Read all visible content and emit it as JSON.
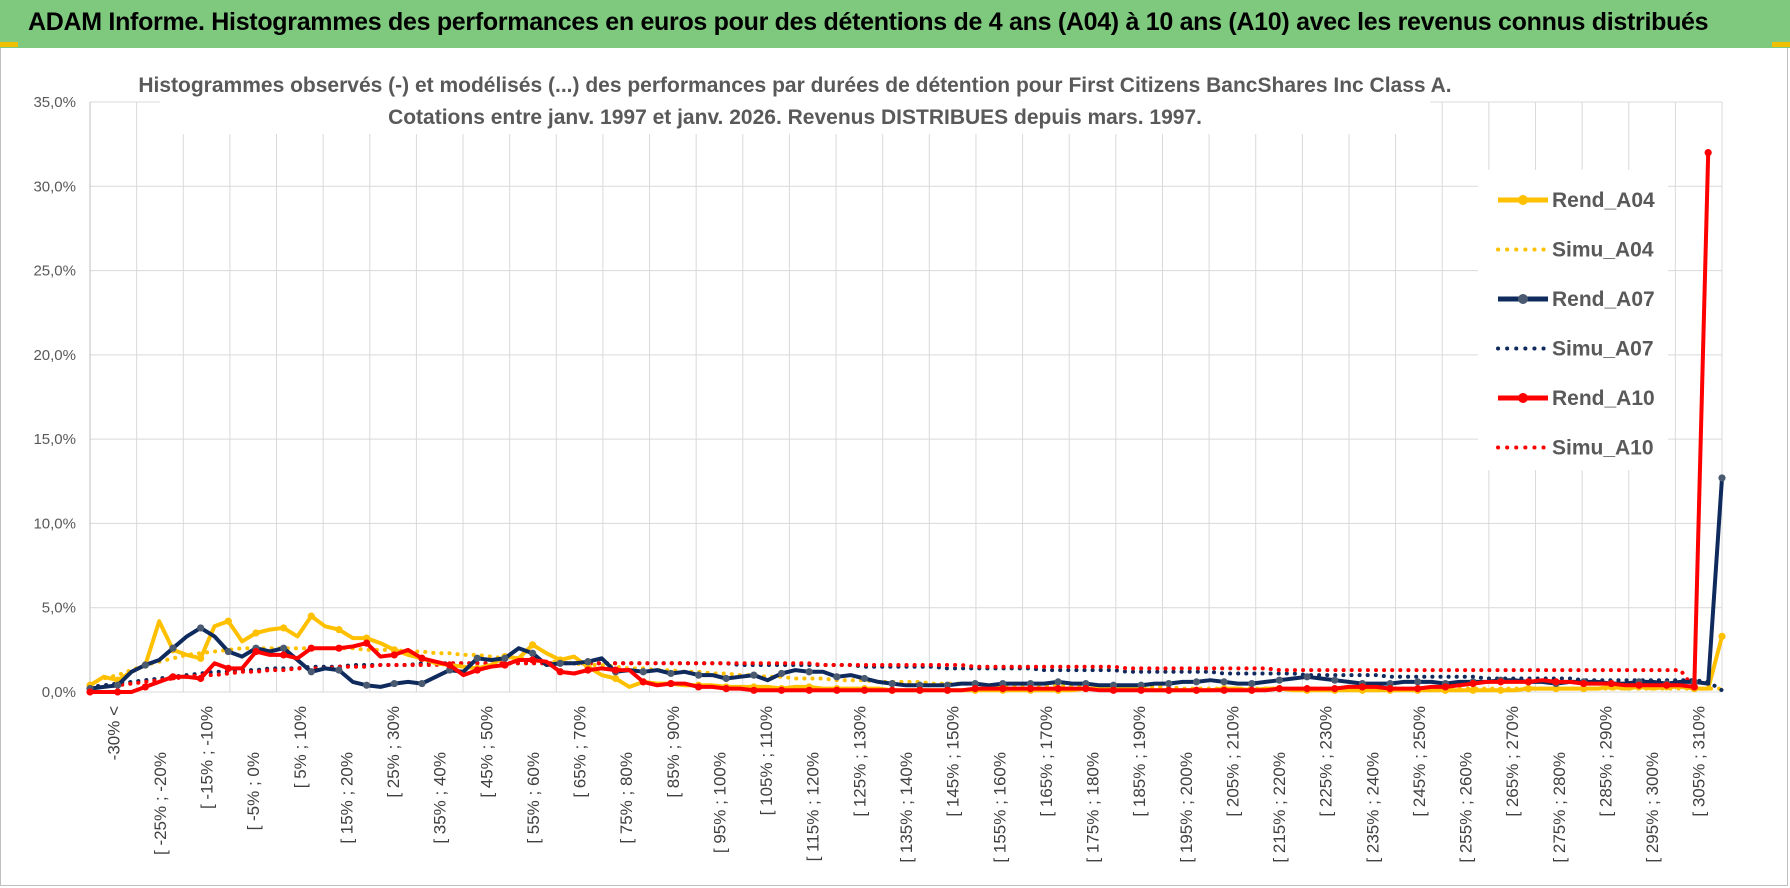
{
  "header": {
    "title": "ADAM Informe. Histogrammes des performances en euros pour des détentions de 4 ans (A04) à 10 ans (A10) avec les revenus connus distribués"
  },
  "colors": {
    "header_bg": "#7fc97f",
    "a04": "#ffc000",
    "a07": "#0f2a5c",
    "a07_marker": "#4a5a70",
    "a10": "#ff0000",
    "grid": "#d9d9d9"
  },
  "chart_data": {
    "type": "line",
    "title": "Histogrammes observés (-) et modélisés (...) des performances par durées de détention pour First Citizens BancShares Inc Class A.",
    "subtitle": "Cotations entre janv. 1997 et janv. 2026. Revenus DISTRIBUES depuis mars. 1997.",
    "xlabel": "",
    "ylabel": "",
    "ylim": [
      0,
      35
    ],
    "yticks": [
      "0,0%",
      "5,0%",
      "10,0%",
      "15,0%",
      "20,0%",
      "25,0%",
      "30,0%",
      "35,0%"
    ],
    "grid": true,
    "legend_position": "right",
    "category_labels": [
      "-30% <",
      "[ -25% ; -20%",
      "[ -15% ; -10%",
      "[ -5% ; 0%",
      "[ 5% ; 10%",
      "[ 15% ; 20%",
      "[ 25% ; 30%",
      "[ 35% ; 40%",
      "[ 45% ; 50%",
      "[ 55% ; 60%",
      "[ 65% ; 70%",
      "[ 75% ; 80%",
      "[ 85% ; 90%",
      "[ 95% ; 100%",
      "[ 105% ; 110%",
      "[ 115% ; 120%",
      "[ 125% ; 130%",
      "[ 135% ; 140%",
      "[ 145% ; 150%",
      "[ 155% ; 160%",
      "[ 165% ; 170%",
      "[ 175% ; 180%",
      "[ 185% ; 190%",
      "[ 195% ; 200%",
      "[ 205% ; 210%",
      "[ 215% ; 220%",
      "[ 225% ; 230%",
      "[ 235% ; 240%",
      "[ 245% ; 250%",
      "[ 255% ; 260%",
      "[ 265% ; 270%",
      "[ 275% ; 280%",
      "[ 285% ; 290%",
      "[ 295% ; 300%",
      "[ 305% ; 310%"
    ],
    "series": [
      {
        "name": "Rend_A04",
        "style": "solid",
        "color": "#ffc000",
        "values": [
          0.4,
          0.9,
          0.7,
          1.2,
          1.6,
          4.2,
          2.5,
          2.2,
          2.0,
          3.9,
          4.2,
          3.0,
          3.5,
          3.7,
          3.8,
          3.3,
          4.5,
          3.9,
          3.7,
          3.2,
          3.2,
          2.9,
          2.5,
          2.2,
          2.0,
          1.7,
          1.6,
          1.5,
          1.4,
          1.6,
          2.1,
          2.0,
          2.8,
          2.3,
          1.9,
          2.1,
          1.5,
          1.0,
          0.8,
          0.3,
          0.6,
          0.5,
          0.5,
          0.4,
          0.4,
          0.4,
          0.3,
          0.3,
          0.3,
          0.3,
          0.2,
          0.3,
          0.3,
          0.2,
          0.2,
          0.2,
          0.2,
          0.2,
          0.1,
          0.1,
          0.1,
          0.1,
          0.1,
          0.1,
          0.1,
          0.1,
          0.1,
          0.1,
          0.1,
          0.1,
          0.1,
          0.1,
          0.2,
          0.2,
          0.2,
          0.2,
          0.2,
          0.1,
          0.1,
          0.1,
          0.1,
          0.1,
          0.2,
          0.2,
          0.1,
          0.2,
          0.2,
          0.1,
          0.1,
          0.1,
          0.1,
          0.1,
          0.1,
          0.1,
          0.1,
          0.1,
          0.1,
          0.1,
          0.1,
          0.1,
          0.1,
          0.1,
          0.1,
          0.1,
          0.2,
          0.2,
          0.2,
          0.2,
          0.2,
          0.2,
          0.3,
          0.2,
          0.3,
          0.2,
          0.3,
          0.3,
          0.2,
          0.2,
          3.3
        ]
      },
      {
        "name": "Simu_A04",
        "style": "dotted",
        "color": "#ffc000",
        "values": [
          0.5,
          0.8,
          1.0,
          1.3,
          1.6,
          1.8,
          2.0,
          2.2,
          2.3,
          2.4,
          2.5,
          2.6,
          2.6,
          2.6,
          2.6,
          2.6,
          2.6,
          2.6,
          2.6,
          2.6,
          2.5,
          2.5,
          2.5,
          2.4,
          2.4,
          2.3,
          2.3,
          2.2,
          2.2,
          2.1,
          2.0,
          2.0,
          1.9,
          1.8,
          1.8,
          1.7,
          1.6,
          1.6,
          1.5,
          1.4,
          1.4,
          1.3,
          1.3,
          1.2,
          1.2,
          1.1,
          1.1,
          1.0,
          1.0,
          0.9,
          0.9,
          0.8,
          0.8,
          0.8,
          0.7,
          0.7,
          0.7,
          0.6,
          0.6,
          0.6,
          0.6,
          0.5,
          0.5,
          0.5,
          0.5,
          0.4,
          0.4,
          0.4,
          0.4,
          0.4,
          0.4,
          0.3,
          0.3,
          0.3,
          0.3,
          0.3,
          0.3,
          0.3,
          0.3,
          0.2,
          0.2,
          0.2,
          0.2,
          0.2,
          0.2,
          0.2,
          0.2,
          0.2,
          0.2,
          0.2,
          0.2,
          0.2,
          0.2,
          0.2,
          0.2,
          0.2,
          0.2,
          0.2,
          0.2,
          0.2,
          0.2,
          0.2,
          0.2,
          0.2,
          0.2,
          0.2,
          0.2,
          0.2,
          0.2,
          0.2,
          0.2,
          0.2,
          0.2,
          0.2,
          0.2,
          0.2,
          0.2,
          0.2,
          0.2
        ]
      },
      {
        "name": "Rend_A07",
        "style": "solid",
        "color": "#0f2a5c",
        "values": [
          0.2,
          0.3,
          0.4,
          1.2,
          1.6,
          1.9,
          2.6,
          3.3,
          3.8,
          3.3,
          2.4,
          2.1,
          2.6,
          2.4,
          2.6,
          1.9,
          1.2,
          1.4,
          1.3,
          0.6,
          0.4,
          0.3,
          0.5,
          0.6,
          0.5,
          0.9,
          1.3,
          1.2,
          2.0,
          1.9,
          2.0,
          2.6,
          2.3,
          1.6,
          1.7,
          1.7,
          1.8,
          2.0,
          1.2,
          1.3,
          1.2,
          1.3,
          1.1,
          1.2,
          1.0,
          1.0,
          0.8,
          0.9,
          1.0,
          0.7,
          1.1,
          1.3,
          1.2,
          1.2,
          0.9,
          1.0,
          0.8,
          0.6,
          0.5,
          0.4,
          0.4,
          0.4,
          0.4,
          0.5,
          0.5,
          0.4,
          0.5,
          0.5,
          0.5,
          0.5,
          0.6,
          0.5,
          0.5,
          0.4,
          0.4,
          0.4,
          0.4,
          0.5,
          0.5,
          0.6,
          0.6,
          0.7,
          0.6,
          0.5,
          0.5,
          0.6,
          0.7,
          0.8,
          0.9,
          0.8,
          0.7,
          0.6,
          0.5,
          0.5,
          0.5,
          0.6,
          0.6,
          0.6,
          0.5,
          0.6,
          0.6,
          0.6,
          0.7,
          0.7,
          0.6,
          0.6,
          0.5,
          0.6,
          0.6,
          0.6,
          0.5,
          0.5,
          0.6,
          0.6,
          0.5,
          0.6,
          0.6,
          0.5,
          12.7
        ]
      },
      {
        "name": "Simu_A07",
        "style": "dotted",
        "color": "#0f2a5c",
        "values": [
          0.3,
          0.4,
          0.5,
          0.6,
          0.7,
          0.8,
          0.9,
          1.0,
          1.1,
          1.2,
          1.2,
          1.3,
          1.3,
          1.4,
          1.4,
          1.4,
          1.5,
          1.5,
          1.5,
          1.6,
          1.6,
          1.6,
          1.6,
          1.6,
          1.7,
          1.7,
          1.7,
          1.7,
          1.7,
          1.7,
          1.7,
          1.7,
          1.7,
          1.7,
          1.7,
          1.7,
          1.7,
          1.7,
          1.7,
          1.7,
          1.7,
          1.7,
          1.7,
          1.7,
          1.7,
          1.7,
          1.7,
          1.6,
          1.6,
          1.6,
          1.6,
          1.6,
          1.6,
          1.6,
          1.6,
          1.6,
          1.5,
          1.5,
          1.5,
          1.5,
          1.5,
          1.5,
          1.4,
          1.4,
          1.4,
          1.4,
          1.4,
          1.4,
          1.4,
          1.3,
          1.3,
          1.3,
          1.3,
          1.3,
          1.3,
          1.2,
          1.2,
          1.2,
          1.2,
          1.2,
          1.2,
          1.2,
          1.1,
          1.1,
          1.1,
          1.1,
          1.1,
          1.1,
          1.0,
          1.0,
          1.0,
          1.0,
          1.0,
          1.0,
          0.9,
          0.9,
          0.9,
          0.9,
          0.9,
          0.9,
          0.9,
          0.8,
          0.8,
          0.8,
          0.8,
          0.8,
          0.8,
          0.8,
          0.7,
          0.7,
          0.7,
          0.7,
          0.7,
          0.7,
          0.7,
          0.7,
          0.7,
          0.6,
          0.1
        ]
      },
      {
        "name": "Rend_A10",
        "style": "solid",
        "color": "#ff0000",
        "values": [
          0.0,
          0.0,
          0.0,
          0.0,
          0.3,
          0.6,
          0.9,
          0.9,
          0.8,
          1.7,
          1.4,
          1.4,
          2.4,
          2.2,
          2.2,
          2.0,
          2.6,
          2.6,
          2.6,
          2.7,
          2.9,
          2.1,
          2.2,
          2.5,
          2.0,
          1.8,
          1.6,
          1.0,
          1.3,
          1.5,
          1.6,
          1.9,
          1.9,
          1.8,
          1.2,
          1.1,
          1.3,
          1.4,
          1.3,
          1.3,
          0.6,
          0.4,
          0.5,
          0.5,
          0.3,
          0.3,
          0.2,
          0.2,
          0.1,
          0.1,
          0.1,
          0.1,
          0.1,
          0.1,
          0.1,
          0.1,
          0.1,
          0.1,
          0.1,
          0.1,
          0.1,
          0.1,
          0.1,
          0.1,
          0.2,
          0.2,
          0.2,
          0.2,
          0.2,
          0.2,
          0.2,
          0.2,
          0.2,
          0.1,
          0.1,
          0.1,
          0.1,
          0.1,
          0.1,
          0.1,
          0.1,
          0.1,
          0.1,
          0.1,
          0.1,
          0.1,
          0.2,
          0.2,
          0.2,
          0.2,
          0.2,
          0.3,
          0.3,
          0.3,
          0.2,
          0.2,
          0.2,
          0.3,
          0.3,
          0.4,
          0.5,
          0.6,
          0.6,
          0.6,
          0.6,
          0.7,
          0.6,
          0.6,
          0.5,
          0.5,
          0.5,
          0.4,
          0.4,
          0.4,
          0.4,
          0.4,
          0.3,
          32.0
        ]
      },
      {
        "name": "Simu_A10",
        "style": "dotted",
        "color": "#ff0000",
        "values": [
          0.2,
          0.3,
          0.4,
          0.5,
          0.6,
          0.7,
          0.8,
          0.9,
          1.0,
          1.0,
          1.1,
          1.2,
          1.2,
          1.3,
          1.3,
          1.4,
          1.4,
          1.4,
          1.5,
          1.5,
          1.5,
          1.6,
          1.6,
          1.6,
          1.6,
          1.6,
          1.7,
          1.7,
          1.7,
          1.7,
          1.7,
          1.7,
          1.7,
          1.7,
          1.7,
          1.7,
          1.7,
          1.7,
          1.7,
          1.7,
          1.7,
          1.7,
          1.7,
          1.7,
          1.7,
          1.7,
          1.7,
          1.7,
          1.7,
          1.7,
          1.7,
          1.7,
          1.7,
          1.6,
          1.6,
          1.6,
          1.6,
          1.6,
          1.6,
          1.6,
          1.6,
          1.6,
          1.6,
          1.6,
          1.5,
          1.5,
          1.5,
          1.5,
          1.5,
          1.5,
          1.5,
          1.5,
          1.5,
          1.5,
          1.5,
          1.4,
          1.4,
          1.4,
          1.4,
          1.4,
          1.4,
          1.4,
          1.4,
          1.4,
          1.4,
          1.4,
          1.3,
          1.3,
          1.3,
          1.3,
          1.3,
          1.3,
          1.3,
          1.3,
          1.3,
          1.3,
          1.3,
          1.3,
          1.3,
          1.3,
          1.3,
          1.3,
          1.3,
          1.3,
          1.3,
          1.3,
          1.3,
          1.3,
          1.3,
          1.3,
          1.3,
          1.3,
          1.3,
          1.3,
          1.3,
          1.3,
          0.2
        ]
      }
    ]
  }
}
